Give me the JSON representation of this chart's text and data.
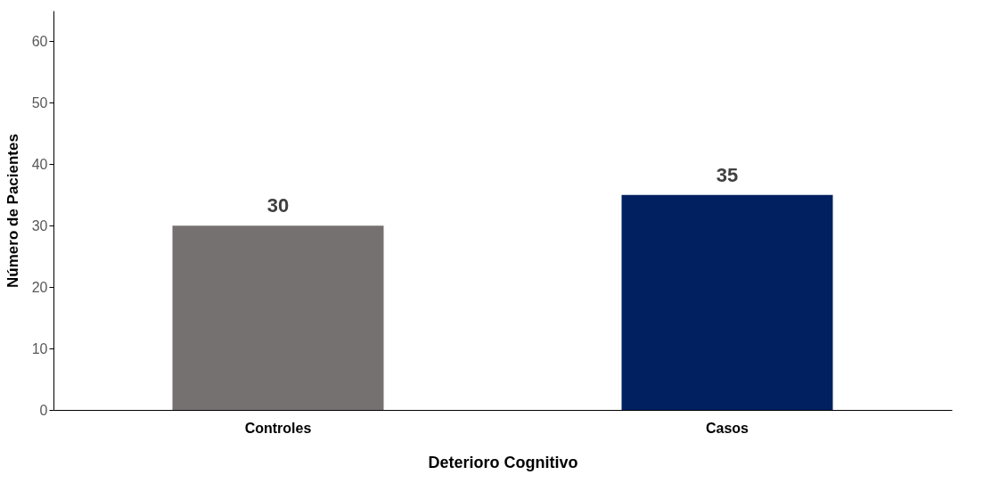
{
  "chart_data": {
    "type": "bar",
    "xlabel": "Deterioro Cognitivo",
    "ylabel": "Número de Pacientes",
    "categories": [
      "Controles",
      "Casos"
    ],
    "values": [
      30,
      35
    ],
    "colors": [
      "#767171",
      "#002060"
    ],
    "ylim": [
      0,
      65
    ],
    "yticks": [
      0,
      10,
      20,
      30,
      40,
      50,
      60
    ],
    "grid": false,
    "data_labels": true
  }
}
